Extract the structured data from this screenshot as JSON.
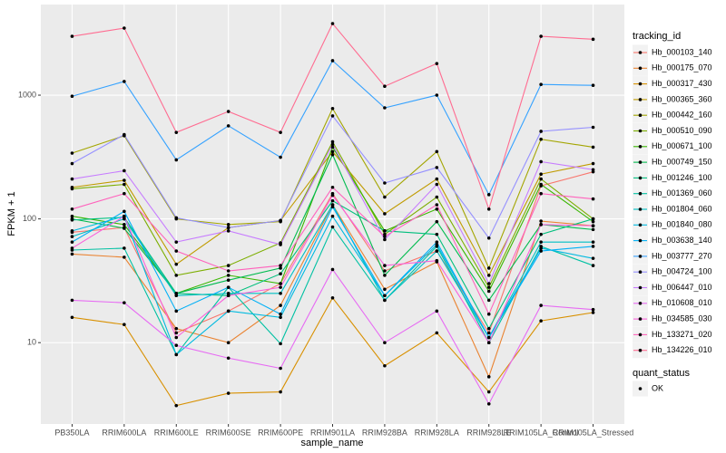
{
  "chart_data": {
    "type": "line",
    "x_label": "sample_name",
    "y_label": "FPKM + 1",
    "log_y": true,
    "grid": true,
    "legend_title": "tracking_id",
    "shape_legend": {
      "title": "quant_status",
      "labels": [
        "OK"
      ]
    },
    "categories": [
      "PB350LA",
      "RRIM600LA",
      "RRIM600LE",
      "RRIM600SE",
      "RRIM600PE",
      "RRIM901LA",
      "RRIM928BA",
      "RRIM928LA",
      "RRIM928LE",
      "RRIM105LA_Control",
      "RRIM105LA_Stressed"
    ],
    "ylim": [
      2.2,
      5400
    ],
    "yticks": [
      10,
      100,
      1000
    ],
    "series": [
      {
        "name": "Hb_000103_140",
        "color": "#F8766D",
        "values": [
          78,
          85,
          12,
          18,
          30,
          160,
          38,
          55,
          12,
          185,
          240
        ]
      },
      {
        "name": "Hb_000175_070",
        "color": "#EA8331",
        "values": [
          52,
          49,
          13,
          10,
          20,
          130,
          27,
          45,
          5.3,
          96,
          88
        ]
      },
      {
        "name": "Hb_000317_430",
        "color": "#D89000",
        "values": [
          16,
          14,
          3.1,
          3.9,
          4.0,
          23,
          6.5,
          12,
          4.0,
          15,
          17.5
        ]
      },
      {
        "name": "Hb_000365_360",
        "color": "#C09B00",
        "values": [
          180,
          205,
          43,
          85,
          97,
          350,
          110,
          210,
          35,
          230,
          280
        ]
      },
      {
        "name": "Hb_000442_160",
        "color": "#A3A500",
        "values": [
          340,
          470,
          100,
          90,
          95,
          780,
          150,
          350,
          40,
          440,
          380
        ]
      },
      {
        "name": "Hb_000510_090",
        "color": "#7CAE00",
        "values": [
          175,
          190,
          35,
          42,
          64,
          420,
          75,
          150,
          28,
          210,
          100
        ]
      },
      {
        "name": "Hb_000671_100",
        "color": "#39B600",
        "values": [
          105,
          90,
          25,
          35,
          30,
          380,
          80,
          120,
          26,
          190,
          95
        ]
      },
      {
        "name": "Hb_000749_150",
        "color": "#00BB4E",
        "values": [
          100,
          84,
          25,
          32,
          40,
          330,
          35,
          95,
          22,
          90,
          82
        ]
      },
      {
        "name": "Hb_001246_100",
        "color": "#00BF7D",
        "values": [
          98,
          103,
          25,
          24,
          36,
          140,
          80,
          75,
          13,
          75,
          100
        ]
      },
      {
        "name": "Hb_001369_060",
        "color": "#00C1A3",
        "values": [
          56,
          58,
          8,
          28,
          9.8,
          86,
          22,
          60,
          10,
          60,
          42
        ]
      },
      {
        "name": "Hb_001804_060",
        "color": "#00BFC4",
        "values": [
          72,
          100,
          24,
          25,
          25,
          130,
          22,
          55,
          11,
          65,
          65
        ]
      },
      {
        "name": "Hb_001840_080",
        "color": "#00BAE0",
        "values": [
          80,
          105,
          8,
          18,
          16,
          105,
          24,
          62,
          11,
          58,
          48
        ]
      },
      {
        "name": "Hb_003638_140",
        "color": "#00B0F6",
        "values": [
          65,
          115,
          18,
          28,
          17,
          125,
          24,
          65,
          11,
          55,
          60
        ]
      },
      {
        "name": "Hb_003777_270",
        "color": "#35A2FF",
        "values": [
          980,
          1290,
          300,
          565,
          315,
          1900,
          790,
          1000,
          157,
          1220,
          1200
        ]
      },
      {
        "name": "Hb_004724_100",
        "color": "#9590FF",
        "values": [
          280,
          480,
          102,
          85,
          97,
          680,
          195,
          260,
          70,
          510,
          550
        ]
      },
      {
        "name": "Hb_006447_010",
        "color": "#C77CFF",
        "values": [
          210,
          245,
          65,
          80,
          62,
          400,
          68,
          190,
          30,
          290,
          250
        ]
      },
      {
        "name": "Hb_010608_010",
        "color": "#E76BF3",
        "values": [
          22,
          21,
          9.5,
          7.5,
          6.2,
          39,
          10,
          18,
          3.2,
          20,
          18.5
        ]
      },
      {
        "name": "Hb_034585_030",
        "color": "#FA62DB",
        "values": [
          58,
          105,
          11,
          24,
          28,
          155,
          42,
          46,
          10,
          90,
          88
        ]
      },
      {
        "name": "Hb_133271_020",
        "color": "#FF62BC",
        "values": [
          120,
          160,
          55,
          38,
          42,
          180,
          72,
          130,
          17,
          160,
          145
        ]
      },
      {
        "name": "Hb_134226_010",
        "color": "#FF6C91",
        "values": [
          2990,
          3480,
          500,
          738,
          500,
          3790,
          1180,
          1800,
          120,
          2990,
          2830
        ]
      }
    ]
  }
}
